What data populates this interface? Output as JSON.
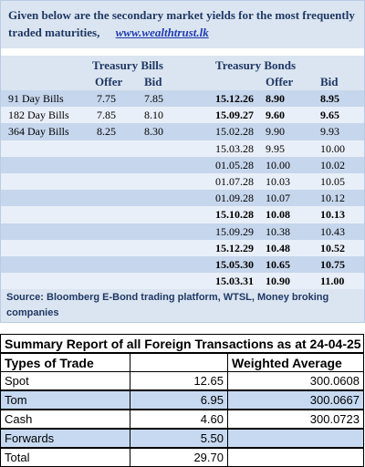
{
  "header": {
    "text": "Given below are the secondary market yields for the most frequently traded maturities,",
    "link": "www.wealthtrust.lk"
  },
  "yields": {
    "bills_heading": "Treasury Bills",
    "bonds_heading": "Treasury Bonds",
    "columns": [
      "Offer",
      "Bid",
      "Offer",
      "Bid"
    ],
    "bills": [
      {
        "name": "91 Day Bills",
        "offer": "7.75",
        "bid": "7.85"
      },
      {
        "name": "182 Day Bills",
        "offer": "7.85",
        "bid": "8.10"
      },
      {
        "name": "364 Day Bills",
        "offer": "8.25",
        "bid": "8.30"
      }
    ],
    "bonds": [
      {
        "maturity": "15.12.26",
        "offer": "8.90",
        "bid": "8.95",
        "bold": true
      },
      {
        "maturity": "15.09.27",
        "offer": "9.60",
        "bid": "9.65",
        "bold": true
      },
      {
        "maturity": "15.02.28",
        "offer": "9.90",
        "bid": "9.93",
        "bold": false
      },
      {
        "maturity": "15.03.28",
        "offer": "9.95",
        "bid": "10.00",
        "bold": false
      },
      {
        "maturity": "01.05.28",
        "offer": "10.00",
        "bid": "10.02",
        "bold": false
      },
      {
        "maturity": "01.07.28",
        "offer": "10.03",
        "bid": "10.05",
        "bold": false
      },
      {
        "maturity": "01.09.28",
        "offer": "10.07",
        "bid": "10.12",
        "bold": false
      },
      {
        "maturity": "15.10.28",
        "offer": "10.08",
        "bid": "10.13",
        "bold": true
      },
      {
        "maturity": "15.09.29",
        "offer": "10.38",
        "bid": "10.43",
        "bold": false
      },
      {
        "maturity": "15.12.29",
        "offer": "10.48",
        "bid": "10.52",
        "bold": true
      },
      {
        "maturity": "15.05.30",
        "offer": "10.65",
        "bid": "10.75",
        "bold": true
      },
      {
        "maturity": "15.03.31",
        "offer": "10.90",
        "bid": "11.00",
        "bold": true
      }
    ]
  },
  "source": "Source: Bloomberg E-Bond trading platform, WTSL, Money broking companies",
  "summary": {
    "title": "Summary Report of all Foreign Transactions as at 24-04-25",
    "columns": [
      "Types of Trade",
      "Weighted Average"
    ],
    "rows": [
      {
        "type": "Spot",
        "amount": "12.65",
        "average": "300.0608"
      },
      {
        "type": "Tom",
        "amount": "6.95",
        "average": "300.0667"
      },
      {
        "type": "Cash",
        "amount": "4.60",
        "average": "300.0723"
      },
      {
        "type": "Forwards",
        "amount": "5.50"
      },
      {
        "type": "Total",
        "amount": "29.70"
      }
    ]
  }
}
